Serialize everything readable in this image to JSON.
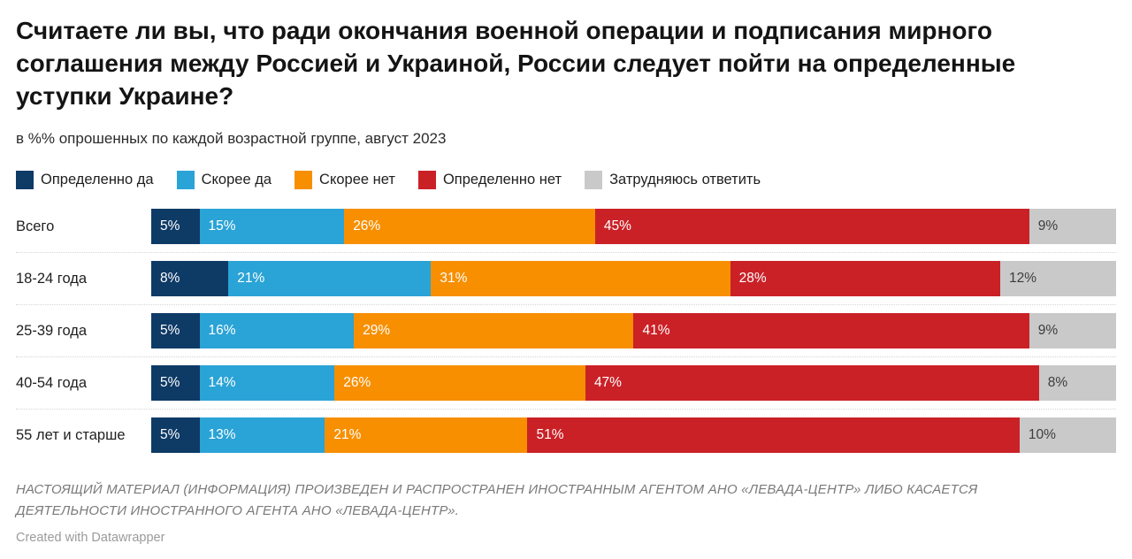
{
  "title": "Считаете ли вы, что ради окончания военной операции и подписания мирного соглашения между Россией и Украиной, России следует пойти на определенные уступки Украине?",
  "subtitle": "в %% опрошенных по каждой возрастной группе, август 2023",
  "colors": {
    "definitely_yes": "#0e3a66",
    "rather_yes": "#2aa3d6",
    "rather_no": "#f78f01",
    "definitely_no": "#ca2127",
    "hard_to_say": "#c9c9c9",
    "gray_label_text": "#3d3d3d",
    "white_label_text": "#ffffff"
  },
  "chart_data": {
    "type": "bar",
    "orientation": "horizontal",
    "stacked": true,
    "xlim": [
      0,
      100
    ],
    "value_suffix": "%",
    "legend_position": "top",
    "grid": false,
    "categories": [
      "Всего",
      "18-24 года",
      "25-39 года",
      "40-54 года",
      "55 лет и старше"
    ],
    "series": [
      {
        "name": "Определенно да",
        "color": "#0e3a66",
        "label_color": "#ffffff",
        "values": [
          5,
          8,
          5,
          5,
          5
        ]
      },
      {
        "name": "Скорее да",
        "color": "#2aa3d6",
        "label_color": "#ffffff",
        "values": [
          15,
          21,
          16,
          14,
          13
        ]
      },
      {
        "name": "Скорее нет",
        "color": "#f78f01",
        "label_color": "#ffffff",
        "values": [
          26,
          31,
          29,
          26,
          21
        ]
      },
      {
        "name": "Определенно нет",
        "color": "#ca2127",
        "label_color": "#ffffff",
        "values": [
          45,
          28,
          41,
          47,
          51
        ]
      },
      {
        "name": "Затрудняюсь ответить",
        "color": "#c9c9c9",
        "label_color": "#3d3d3d",
        "values": [
          9,
          12,
          9,
          8,
          10
        ]
      }
    ]
  },
  "footer": {
    "disclaimer": "НАСТОЯЩИЙ МАТЕРИАЛ (ИНФОРМАЦИЯ) ПРОИЗВЕДЕН И РАСПРОСТРАНЕН ИНОСТРАННЫМ АГЕНТОМ АНО «ЛЕВАДА-ЦЕНТР» ЛИБО КАСАЕТСЯ ДЕЯТЕЛЬНОСТИ ИНОСТРАННОГО АГЕНТА АНО «ЛЕВАДА-ЦЕНТР».",
    "credit": "Created with Datawrapper"
  }
}
